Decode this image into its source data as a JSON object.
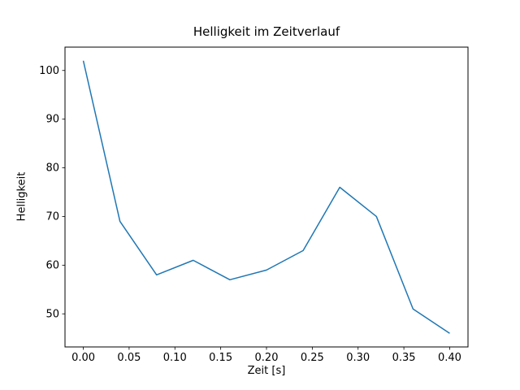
{
  "figure": {
    "background_color": "#ffffff",
    "frame_color": "#000000"
  },
  "chart_data": {
    "type": "line",
    "title": "Helligkeit im Zeitverlauf",
    "xlabel": "Zeit [s]",
    "ylabel": "Helligkeit",
    "x": [
      0.0,
      0.04,
      0.08,
      0.12,
      0.16,
      0.2,
      0.24,
      0.28,
      0.32,
      0.36,
      0.4
    ],
    "y": [
      102,
      69,
      58,
      61,
      57,
      59,
      63,
      76,
      70,
      51,
      46
    ],
    "series_name": "Helligkeit",
    "line_color": "#1f77b4",
    "line_width": 1.5,
    "xlim": [
      -0.02,
      0.42
    ],
    "ylim": [
      43.2,
      104.8
    ],
    "xtick_values": [
      0.0,
      0.05,
      0.1,
      0.15,
      0.2,
      0.25,
      0.3,
      0.35,
      0.4
    ],
    "xtick_labels": [
      "0.00",
      "0.05",
      "0.10",
      "0.15",
      "0.20",
      "0.25",
      "0.30",
      "0.35",
      "0.40"
    ],
    "ytick_values": [
      50,
      60,
      70,
      80,
      90,
      100
    ],
    "ytick_labels": [
      "50",
      "60",
      "70",
      "80",
      "90",
      "100"
    ],
    "grid": false,
    "legend": null
  }
}
